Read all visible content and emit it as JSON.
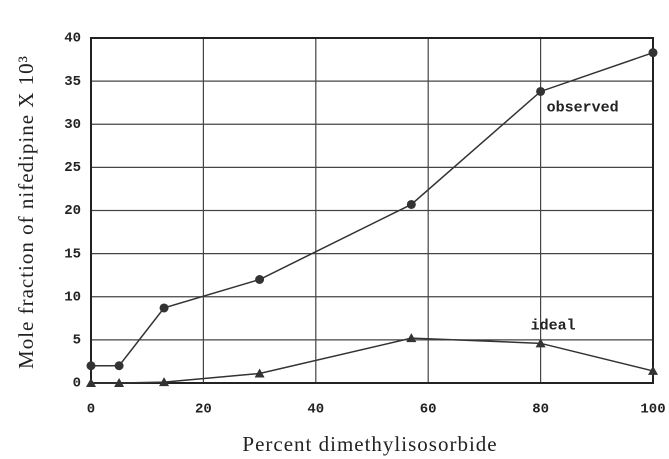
{
  "chart_data": {
    "type": "line",
    "xlabel": "Percent dimethylisosorbide",
    "ylabel": "Mole fraction of nifedipine X 10³",
    "x": [
      0,
      5,
      13,
      30,
      57,
      80,
      100
    ],
    "series": [
      {
        "name": "observed",
        "color": "#333333",
        "marker": "circle",
        "values": [
          2,
          2,
          8.7,
          12,
          20.7,
          33.8,
          38.3
        ]
      },
      {
        "name": "ideal",
        "color": "#333333",
        "marker": "triangle",
        "values": [
          0,
          0,
          0.1,
          1.1,
          5.2,
          4.6,
          1.4
        ]
      }
    ],
    "xlim": [
      0,
      100
    ],
    "xticks": [
      0,
      20,
      40,
      60,
      80,
      100
    ],
    "ylim": [
      0,
      40
    ],
    "yticks": [
      0,
      5,
      10,
      15,
      20,
      25,
      30,
      35,
      40
    ],
    "grid": true
  }
}
